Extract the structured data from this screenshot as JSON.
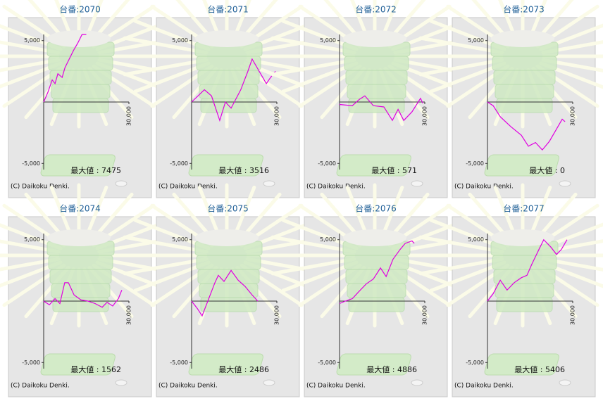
{
  "chart_data": [
    {
      "type": "line",
      "title": "台番:2070",
      "annotation": "最大値 : 7475",
      "footer": "(C) Daikoku Denki.",
      "x": [
        0,
        1500,
        3000,
        4000,
        5000,
        6500,
        7500,
        9000,
        10500,
        12000,
        13500,
        15000
      ],
      "series": [
        {
          "color": "#e000e0",
          "values": [
            0,
            800,
            1800,
            1500,
            2300,
            2000,
            2800,
            3500,
            4200,
            4800,
            5500,
            5500
          ]
        }
      ],
      "xlim": [
        0,
        30000
      ],
      "xticks": [
        {
          "value": 30000,
          "label": "30,000"
        }
      ],
      "ylim": [
        -5500,
        5500
      ],
      "yticks": [
        {
          "value": 5000,
          "label": "5,000"
        },
        {
          "value": -5000,
          "label": "-5,000"
        }
      ]
    },
    {
      "type": "line",
      "title": "台番:2071",
      "annotation": "最大値 : 3516",
      "footer": "(C) Daikoku Denki.",
      "x": [
        0,
        4500,
        7000,
        9900,
        11900,
        13900,
        17300,
        19800,
        21300,
        23800,
        26300,
        27800,
        29500
      ],
      "series": [
        {
          "color": "#e000e0",
          "values": [
            0,
            1000,
            500,
            -1500,
            0,
            -500,
            1000,
            2500,
            3500,
            2500,
            1500,
            2000,
            2500
          ]
        }
      ],
      "xlim": [
        0,
        30000
      ],
      "xticks": [
        {
          "value": 30000,
          "label": "30,000"
        }
      ],
      "ylim": [
        -5500,
        5500
      ],
      "yticks": [
        {
          "value": 5000,
          "label": "5,000"
        },
        {
          "value": -5000,
          "label": "-5,000"
        }
      ]
    },
    {
      "type": "line",
      "title": "台番:2072",
      "annotation": "最大値 : 571",
      "footer": "(C) Daikoku Denki.",
      "x": [
        0,
        4500,
        6900,
        8900,
        11900,
        15600,
        18600,
        20600,
        22600,
        25500,
        28500,
        29300
      ],
      "series": [
        {
          "color": "#e000e0",
          "values": [
            -200,
            -300,
            200,
            500,
            -300,
            -400,
            -1500,
            -600,
            -1500,
            -800,
            300,
            -100
          ]
        }
      ],
      "xlim": [
        0,
        30000
      ],
      "xticks": [
        {
          "value": 30000,
          "label": "30,000"
        }
      ],
      "ylim": [
        -5500,
        5500
      ],
      "yticks": [
        {
          "value": 5000,
          "label": "5,000"
        },
        {
          "value": -5000,
          "label": "-5,000"
        }
      ]
    },
    {
      "type": "line",
      "title": "台番:2073",
      "annotation": "最大値 : 0",
      "footer": "(C) Daikoku Denki.",
      "x": [
        0,
        2000,
        4500,
        8200,
        11900,
        14400,
        16900,
        19300,
        21800,
        24300,
        26300,
        27300
      ],
      "series": [
        {
          "color": "#e000e0",
          "values": [
            0,
            -300,
            -1200,
            -2000,
            -2700,
            -3600,
            -3300,
            -3900,
            -3200,
            -2200,
            -1400,
            -1600
          ]
        }
      ],
      "xlim": [
        0,
        30000
      ],
      "xticks": [
        {
          "value": 30000,
          "label": "30,000"
        }
      ],
      "ylim": [
        -5500,
        5500
      ],
      "yticks": [
        {
          "value": 5000,
          "label": "5,000"
        },
        {
          "value": -5000,
          "label": "-5,000"
        }
      ]
    },
    {
      "type": "line",
      "title": "台番:2074",
      "annotation": "最大値 : 1562",
      "footer": "(C) Daikoku Denki.",
      "x": [
        0,
        2000,
        4000,
        5700,
        7400,
        8700,
        10700,
        13100,
        15600,
        18100,
        20600,
        22300,
        24300,
        26300,
        27500
      ],
      "series": [
        {
          "color": "#e000e0",
          "values": [
            0,
            -300,
            200,
            -200,
            1500,
            1500,
            500,
            100,
            0,
            -200,
            -500,
            -100,
            -400,
            200,
            900
          ]
        }
      ],
      "xlim": [
        0,
        30000
      ],
      "xticks": [
        {
          "value": 30000,
          "label": "30,000"
        }
      ],
      "ylim": [
        -5500,
        5500
      ],
      "yticks": [
        {
          "value": 5000,
          "label": "5,000"
        },
        {
          "value": -5000,
          "label": "-5,000"
        }
      ]
    },
    {
      "type": "line",
      "title": "台番:2075",
      "annotation": "最大値 : 2486",
      "footer": "(C) Daikoku Denki.",
      "x": [
        0,
        2000,
        3700,
        5700,
        8200,
        9400,
        11400,
        13900,
        16400,
        18800,
        21300,
        23300
      ],
      "series": [
        {
          "color": "#e000e0",
          "values": [
            0,
            -600,
            -1200,
            0,
            1500,
            2100,
            1600,
            2500,
            1700,
            1200,
            500,
            0
          ]
        }
      ],
      "xlim": [
        0,
        30000
      ],
      "xticks": [
        {
          "value": 30000,
          "label": "30,000"
        }
      ],
      "ylim": [
        -5500,
        5500
      ],
      "yticks": [
        {
          "value": 5000,
          "label": "5,000"
        },
        {
          "value": -5000,
          "label": "-5,000"
        }
      ]
    },
    {
      "type": "line",
      "title": "台番:2076",
      "annotation": "最大値 : 4886",
      "footer": "(C) Daikoku Denki.",
      "x": [
        0,
        2000,
        4500,
        6900,
        9400,
        11900,
        14400,
        16400,
        18800,
        21300,
        23100,
        25500,
        26300
      ],
      "series": [
        {
          "color": "#e000e0",
          "values": [
            -200,
            0,
            200,
            800,
            1400,
            1800,
            2700,
            2000,
            3400,
            4200,
            4700,
            4900,
            4700
          ]
        }
      ],
      "xlim": [
        0,
        30000
      ],
      "xticks": [
        {
          "value": 30000,
          "label": "30,000"
        }
      ],
      "ylim": [
        -5500,
        5500
      ],
      "yticks": [
        {
          "value": 5000,
          "label": "5,000"
        },
        {
          "value": -5000,
          "label": "-5,000"
        }
      ]
    },
    {
      "type": "line",
      "title": "台番:2077",
      "annotation": "最大値 : 5406",
      "footer": "(C) Daikoku Denki.",
      "x": [
        0,
        2000,
        4500,
        6900,
        9400,
        11900,
        13900,
        15600,
        18100,
        19800,
        22300,
        24300,
        26000,
        28000
      ],
      "series": [
        {
          "color": "#e000e0",
          "values": [
            0,
            600,
            1700,
            900,
            1500,
            1900,
            2100,
            3000,
            4200,
            5000,
            4400,
            3800,
            4200,
            5000
          ]
        }
      ],
      "xlim": [
        0,
        30000
      ],
      "xticks": [
        {
          "value": 30000,
          "label": "30,000"
        }
      ],
      "ylim": [
        -5500,
        5500
      ],
      "yticks": [
        {
          "value": 5000,
          "label": "5,000"
        },
        {
          "value": -5000,
          "label": "-5,000"
        }
      ]
    }
  ]
}
